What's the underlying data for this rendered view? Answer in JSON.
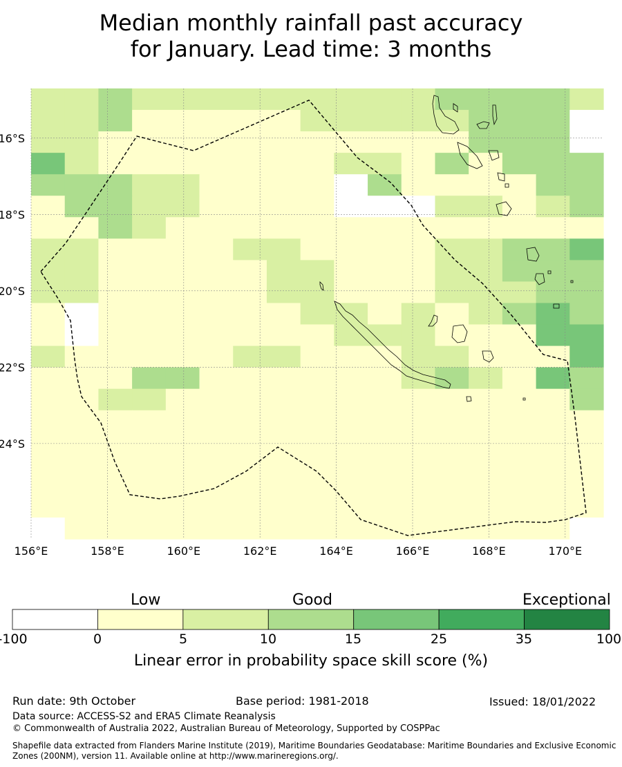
{
  "title": {
    "line1": "Median monthly rainfall past accuracy",
    "line2": "for January. Lead time: 3 months"
  },
  "map": {
    "lon_labels": [
      "156°E",
      "158°E",
      "160°E",
      "162°E",
      "164°E",
      "166°E",
      "168°E",
      "170°E"
    ],
    "lat_labels": [
      "16°S",
      "18°S",
      "20°S",
      "22°S",
      "24°S"
    ],
    "lon_values": [
      156,
      158,
      160,
      162,
      164,
      166,
      168,
      170
    ],
    "lat_values": [
      -16,
      -18,
      -20,
      -22,
      -24
    ],
    "extent": {
      "lon_min": 156,
      "lon_max": 171,
      "lat_min": -26.5,
      "lat_max": -14.7
    },
    "cell_size_deg": 0.833,
    "grid_classes": [
      "22322222222233332",
      "22311111222223330",
      "22111111111113330",
      "42111111122131333",
      "33322111103111133",
      "13322111100022123",
      "11321111111111111",
      "22111122111122334",
      "22111112211122333",
      "22111112211122233",
      "10111111221212343",
      "10111111122211144",
      "21111122111221114",
      "11133111111232143",
      "11221111111111113",
      "11111111111111111",
      "11111111111111111",
      "11111111111111111",
      "11111111111111111",
      "11111111111111111",
      "01111111111111110"
    ],
    "class_colors": [
      "#ffffff",
      "#ffffcc",
      "#d9f0a3",
      "#addd8e",
      "#78c679",
      "#41ab5d",
      "#238443"
    ]
  },
  "colorbar": {
    "category_labels": [
      "Low",
      "Good",
      "Exceptional"
    ],
    "ticks": [
      "-100",
      "0",
      "5",
      "10",
      "15",
      "25",
      "35",
      "100"
    ],
    "colors": [
      "#ffffff",
      "#ffffcc",
      "#d9f0a3",
      "#addd8e",
      "#78c679",
      "#41ab5d",
      "#238443"
    ],
    "axis_label": "Linear error in probability space skill score (%)"
  },
  "footer": {
    "run_date": "Run date: 9th October",
    "base_period": "Base period: 1981-2018",
    "issued": "Issued: 18/01/2022",
    "data_source": "Data source: ACCESS-S2 and ERA5 Climate Reanalysis",
    "copyright": "© Commonwealth of Australia 2022, Australian Bureau of Meteorology, Supported by COSPPac",
    "shapefile_line1": "Shapefile data extracted from Flanders Marine Institute (2019), Maritime Boundaries Geodatabase: Maritime Boundaries and Exclusive Economic",
    "shapefile_line2": "Zones (200NM), version 11. Available online at http://www.marineregions.org/."
  }
}
